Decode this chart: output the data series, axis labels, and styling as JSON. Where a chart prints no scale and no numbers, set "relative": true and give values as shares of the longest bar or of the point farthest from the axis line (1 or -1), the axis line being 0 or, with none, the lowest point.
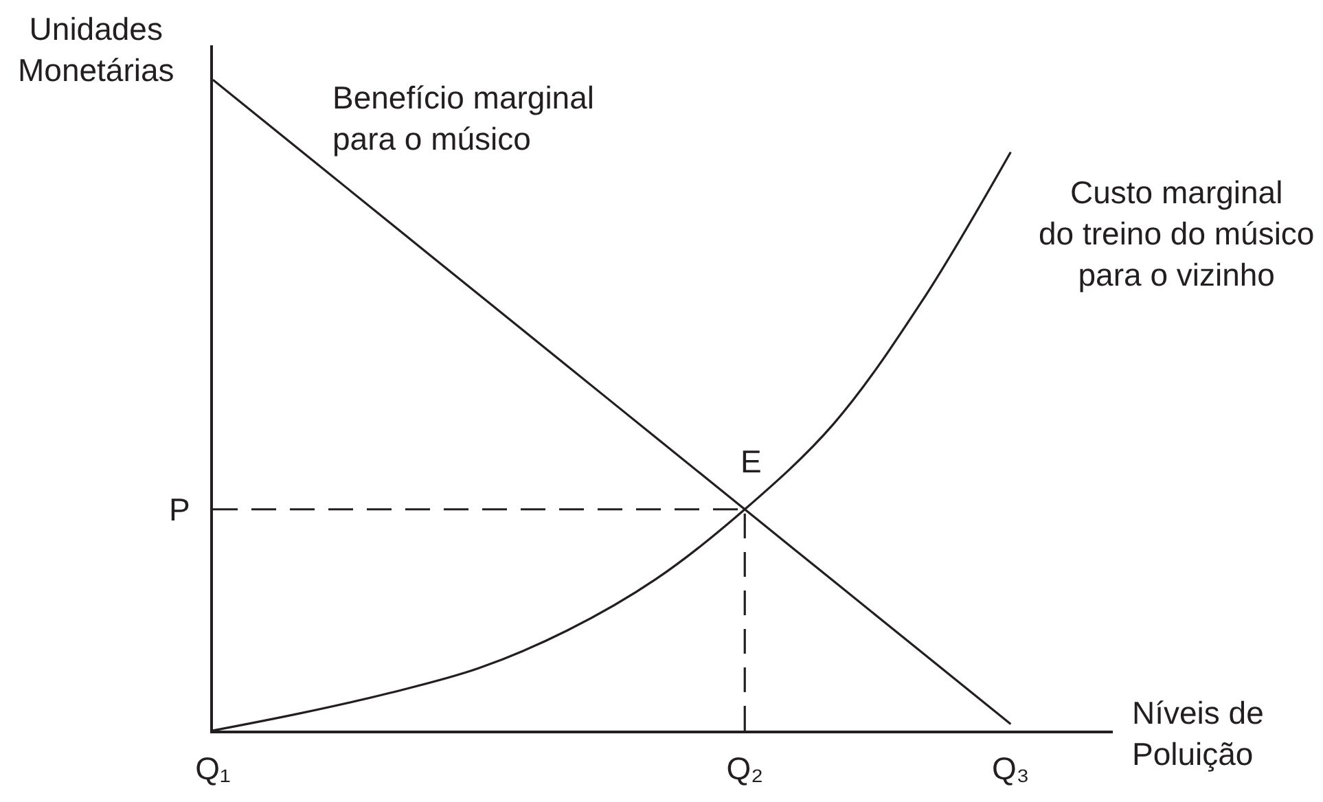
{
  "chart_data": {
    "type": "line",
    "relative": true,
    "xlabel": "Níveis de\nPoluição",
    "ylabel": "Unidades\nMonetárias",
    "categories": [
      "Q₁",
      null,
      null,
      null,
      null,
      null,
      "Q₂",
      null,
      null,
      "Q₃"
    ],
    "tick_labels": "x",
    "series": [
      {
        "name": "Benefício marginal\npara o músico",
        "color": "#231f20",
        "values": [
          1,
          0.89,
          0.78,
          0.67,
          0.56,
          0.45,
          0.34,
          0.23,
          0.12,
          0.01
        ]
      },
      {
        "name": "Custo marginal\ndo treino do músico\npara o vizinho",
        "color": "#231f20",
        "values": [
          0,
          0.027,
          0.058,
          0.096,
          0.154,
          0.233,
          0.34,
          0.471,
          0.66,
          0.889
        ]
      }
    ],
    "ref_lines": [
      {
        "axis": "y",
        "value": 0.34,
        "label": "P",
        "color": "#231f20",
        "line_style": "dashed"
      },
      {
        "axis": "x",
        "value": "Q₂",
        "color": "#231f20",
        "line_style": "dashed"
      }
    ],
    "annotations": [
      {
        "text": "E",
        "x": "Q₂",
        "y": 0.34
      }
    ]
  }
}
